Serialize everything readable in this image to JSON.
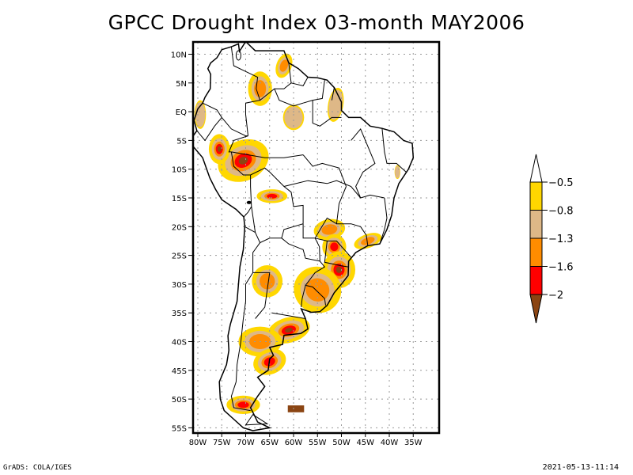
{
  "title": "GPCC Drought Index 03-month MAY2006",
  "footer": {
    "left": "GrADS: COLA/IGES",
    "right": "2021-05-13-11:14"
  },
  "map": {
    "region": "South America",
    "lon_range": [
      -81,
      -32
    ],
    "lat_range": [
      11,
      -57
    ],
    "grid": "dotted, 5-degree",
    "lat_ticks": [
      "10N",
      "5N",
      "EQ",
      "5S",
      "10S",
      "15S",
      "20S",
      "25S",
      "30S",
      "35S",
      "40S",
      "45S",
      "50S",
      "55S"
    ],
    "lat_values": [
      10,
      5,
      0,
      -5,
      -10,
      -15,
      -20,
      -25,
      -30,
      -35,
      -40,
      -45,
      -50,
      -55
    ],
    "lon_ticks": [
      "80W",
      "75W",
      "70W",
      "65W",
      "60W",
      "55W",
      "50W",
      "45W",
      "40W",
      "35W"
    ],
    "lon_values": [
      -80,
      -75,
      -70,
      -65,
      -60,
      -55,
      -50,
      -45,
      -40,
      -35
    ]
  },
  "legend": {
    "levels": [
      "-0.5",
      "-0.8",
      "-1.3",
      "-1.6",
      "-2"
    ],
    "bins": [
      {
        "range": "> -0.5",
        "color": "#FFFFFF"
      },
      {
        "range": "-0.8 to -0.5",
        "color": "#FFD700"
      },
      {
        "range": "-1.3 to -0.8",
        "color": "#DEB887"
      },
      {
        "range": "-1.6 to -1.3",
        "color": "#FF8C00"
      },
      {
        "range": "-2 to -1.6",
        "color": "#FF0000"
      },
      {
        "range": "< -2",
        "color": "#8B4513"
      }
    ]
  },
  "colors": {
    "yellow": "#FFD700",
    "tan": "#DEB887",
    "orange": "#FF8C00",
    "red": "#FF0000",
    "brown": "#8B4513"
  },
  "drought_areas": [
    {
      "name": "western-amazon-peru",
      "lon": -71,
      "lat": -8,
      "max_level": "brown"
    },
    {
      "name": "peru-north",
      "lon": -75,
      "lat": -6.5,
      "max_level": "brown"
    },
    {
      "name": "bolivia-north",
      "lon": -64,
      "lat": -14.5,
      "max_level": "red"
    },
    {
      "name": "venezuela-delta",
      "lon": -62,
      "lat": 8,
      "max_level": "orange"
    },
    {
      "name": "venezuela-south",
      "lon": -67,
      "lat": 4,
      "max_level": "orange"
    },
    {
      "name": "amapa",
      "lon": -51,
      "lat": 1,
      "max_level": "tan"
    },
    {
      "name": "amazon-central",
      "lon": -60,
      "lat": -1,
      "max_level": "tan"
    },
    {
      "name": "ecuador",
      "lon": -79,
      "lat": -1,
      "max_level": "tan"
    },
    {
      "name": "sao-paulo-parana",
      "lon": -52,
      "lat": -20.5,
      "max_level": "orange"
    },
    {
      "name": "parana-red",
      "lon": -51,
      "lat": -23.5,
      "max_level": "red"
    },
    {
      "name": "santa-catarina-rio-grande",
      "lon": -50,
      "lat": -27.5,
      "max_level": "brown"
    },
    {
      "name": "rio-de-janeiro-coast",
      "lon": -45,
      "lat": -22.5,
      "max_level": "orange"
    },
    {
      "name": "uruguay",
      "lon": -55,
      "lat": -32,
      "max_level": "orange"
    },
    {
      "name": "argentina-cordoba",
      "lon": -65,
      "lat": -29,
      "max_level": "orange"
    },
    {
      "name": "buenos-aires-south",
      "lon": -61,
      "lat": -38,
      "max_level": "brown"
    },
    {
      "name": "patagonia-north",
      "lon": -67,
      "lat": -39.5,
      "max_level": "orange"
    },
    {
      "name": "chubut-coast",
      "lon": -64,
      "lat": -43,
      "max_level": "red"
    },
    {
      "name": "patagonia-south",
      "lon": -70,
      "lat": -51,
      "max_level": "red"
    },
    {
      "name": "falklands",
      "lon": -59.5,
      "lat": -51.7,
      "max_level": "brown"
    },
    {
      "name": "brazil-northeast",
      "lon": -38.5,
      "lat": -10,
      "max_level": "tan"
    }
  ]
}
